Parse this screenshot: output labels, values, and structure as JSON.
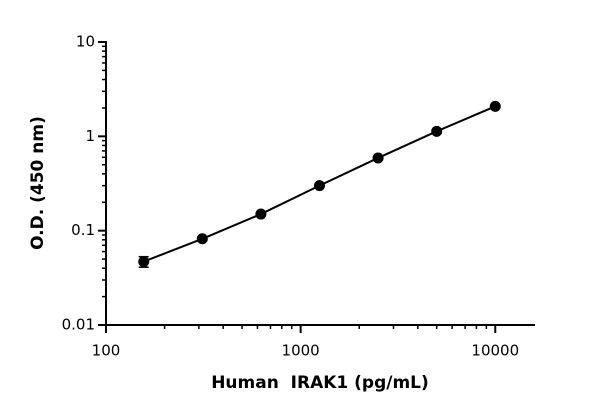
{
  "chart_data": {
    "type": "scatter",
    "x_label": "Human  IRAK1 (pg/mL)",
    "y_label": "O.D. (450 nm)",
    "x_scale": "log",
    "y_scale": "log",
    "xlim": [
      100,
      16000
    ],
    "ylim": [
      0.01,
      10
    ],
    "xticks": [
      100,
      1000,
      10000
    ],
    "yticks": [
      0.01,
      0.1,
      1,
      10
    ],
    "x_minor_ticks": [
      200,
      300,
      400,
      500,
      600,
      700,
      800,
      900,
      2000,
      3000,
      4000,
      5000,
      6000,
      7000,
      8000,
      9000
    ],
    "y_minor_ticks": [
      0.02,
      0.03,
      0.04,
      0.05,
      0.06,
      0.07,
      0.08,
      0.09,
      0.2,
      0.3,
      0.4,
      0.5,
      0.6,
      0.7,
      0.8,
      0.9,
      2,
      3,
      4,
      5,
      6,
      7,
      8,
      9
    ],
    "color": "#000000",
    "x": [
      156.25,
      312.5,
      625,
      1250,
      2500,
      5000,
      10000
    ],
    "values": [
      0.047,
      0.082,
      0.15,
      0.3,
      0.59,
      1.13,
      2.08
    ],
    "errors": [
      0.006,
      0.004,
      0.006,
      0.01,
      0.02,
      0.04,
      0.06
    ],
    "fit_line": true
  }
}
